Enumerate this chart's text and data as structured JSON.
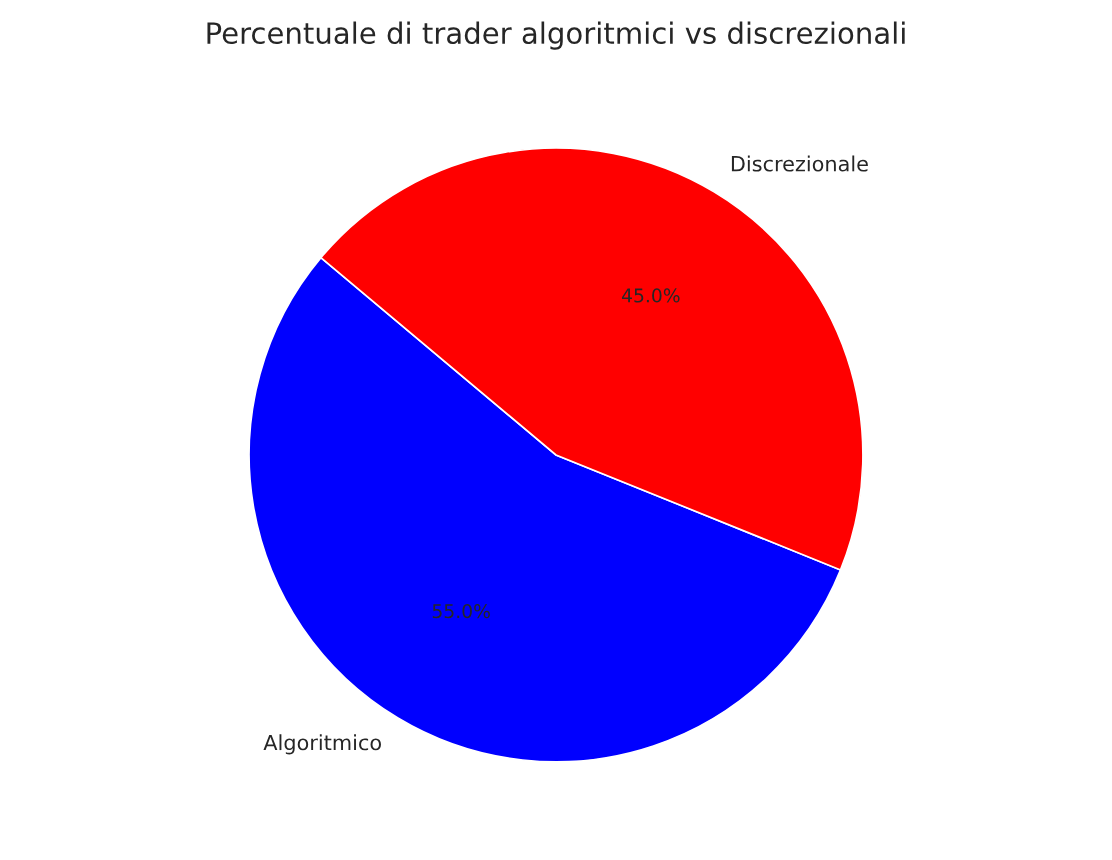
{
  "chart_data": {
    "type": "pie",
    "title": "Percentuale di trader algoritmici vs discrezionali",
    "categories": [
      "Algoritmico",
      "Discrezionale"
    ],
    "values": [
      55.0,
      45.0
    ],
    "colors": [
      "#0000ff",
      "#ff0000"
    ],
    "value_labels": [
      "55.0%",
      "45.0%"
    ]
  }
}
